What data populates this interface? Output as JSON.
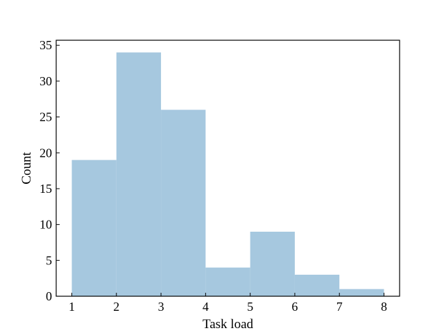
{
  "chart_data": {
    "type": "bar",
    "histogram": true,
    "bins": [
      {
        "x0": 1.0,
        "x1": 2.0,
        "count": 19
      },
      {
        "x0": 2.0,
        "x1": 3.0,
        "count": 34
      },
      {
        "x0": 3.0,
        "x1": 4.0,
        "count": 26
      },
      {
        "x0": 4.0,
        "x1": 5.0,
        "count": 4
      },
      {
        "x0": 5.0,
        "x1": 6.0,
        "count": 9
      },
      {
        "x0": 6.0,
        "x1": 7.0,
        "count": 3
      },
      {
        "x0": 7.0,
        "x1": 8.0,
        "count": 1
      }
    ],
    "xlabel": "Task load",
    "ylabel": "Count",
    "xlim": [
      0.65,
      8.35
    ],
    "ylim": [
      0,
      35.7
    ],
    "xticks": [
      "1",
      "2",
      "3",
      "4",
      "5",
      "6",
      "7",
      "8"
    ],
    "yticks": [
      "0",
      "5",
      "10",
      "15",
      "20",
      "25",
      "30",
      "35"
    ],
    "grid": false,
    "bar_color": "#a6c8df"
  }
}
